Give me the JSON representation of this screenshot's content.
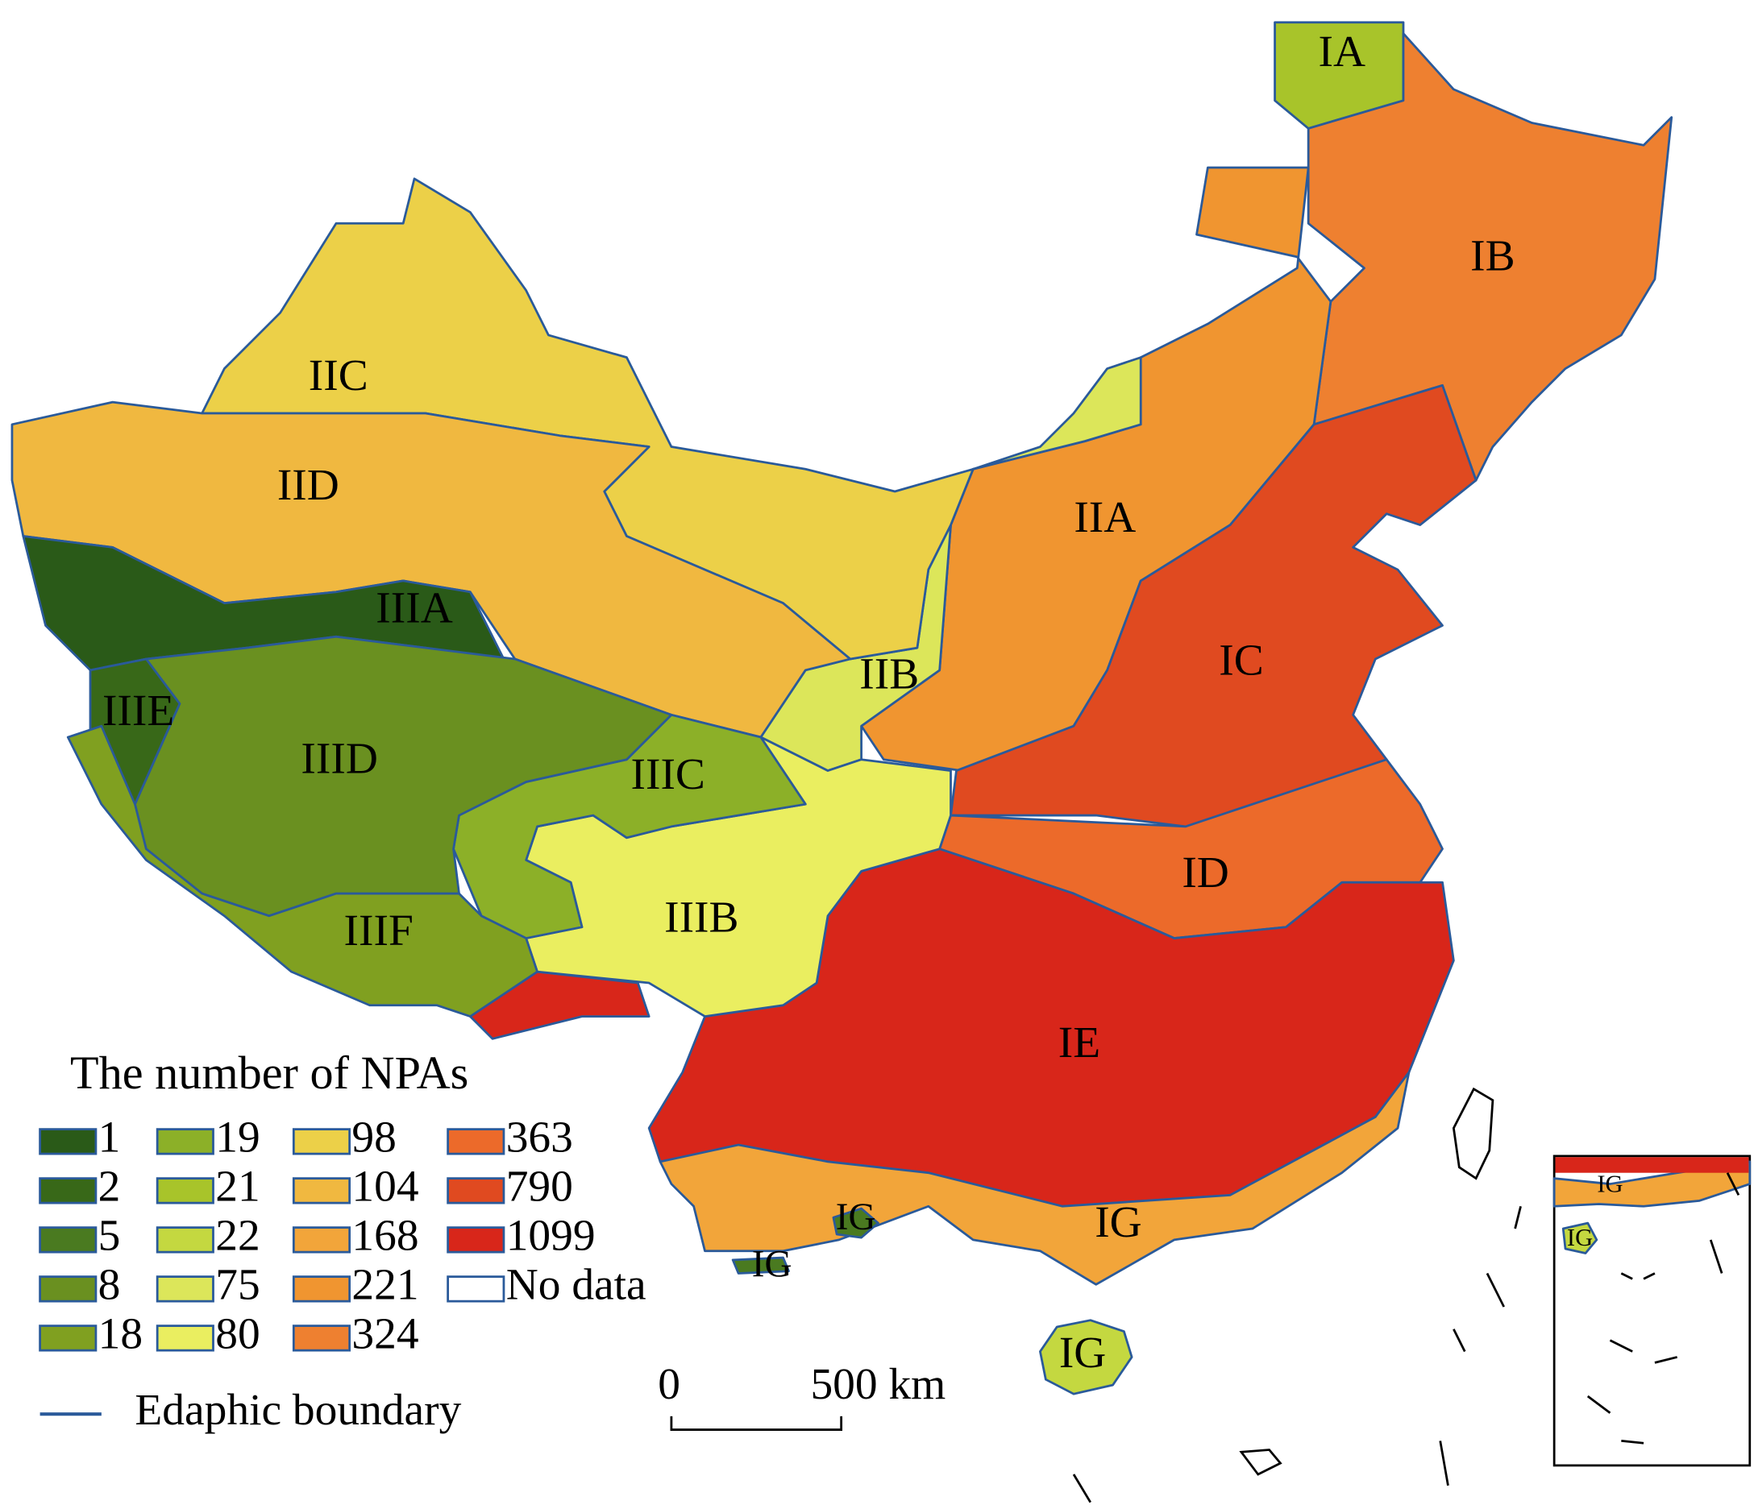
{
  "title": "The number of NPAs",
  "legend": [
    {
      "label": "1",
      "color": "#2a5a18"
    },
    {
      "label": "2",
      "color": "#386818"
    },
    {
      "label": "5",
      "color": "#4a7a20"
    },
    {
      "label": "8",
      "color": "#6a9020"
    },
    {
      "label": "18",
      "color": "#80a020"
    },
    {
      "label": "19",
      "color": "#8cb028"
    },
    {
      "label": "21",
      "color": "#a8c42a"
    },
    {
      "label": "22",
      "color": "#c4d840"
    },
    {
      "label": "75",
      "color": "#dce65a"
    },
    {
      "label": "80",
      "color": "#eaee60"
    },
    {
      "label": "98",
      "color": "#ecd048"
    },
    {
      "label": "104",
      "color": "#f0b840"
    },
    {
      "label": "168",
      "color": "#f2a53a"
    },
    {
      "label": "221",
      "color": "#f09530"
    },
    {
      "label": "324",
      "color": "#ee8030"
    },
    {
      "label": "363",
      "color": "#ec6a2a"
    },
    {
      "label": "790",
      "color": "#e04a20"
    },
    {
      "label": "1099",
      "color": "#d8261a"
    },
    {
      "label": "No data",
      "color": "#ffffff"
    }
  ],
  "boundary_label": "Edaphic boundary",
  "scale_bar": {
    "start": "0",
    "end": "500 km"
  },
  "regions": [
    {
      "label": "IA",
      "color": "#a8c42a"
    },
    {
      "label": "IB",
      "color": "#ee8030"
    },
    {
      "label": "IIA",
      "color": "#f09530"
    },
    {
      "label": "IC",
      "color": "#e04a20"
    },
    {
      "label": "ID",
      "color": "#ec6a2a"
    },
    {
      "label": "IE",
      "color": "#d8261a"
    },
    {
      "label": "IG",
      "color": "#f2a53a"
    },
    {
      "label": "IG",
      "color": "#c4d840"
    },
    {
      "label": "IG",
      "color": "#4a7a20"
    },
    {
      "label": "IG",
      "color": "#4a7a20"
    },
    {
      "label": "IIB",
      "color": "#dce65a"
    },
    {
      "label": "IIC",
      "color": "#ecd048"
    },
    {
      "label": "IID",
      "color": "#f0b840"
    },
    {
      "label": "IIIA",
      "color": "#2a5a18"
    },
    {
      "label": "IIIB",
      "color": "#eaee60"
    },
    {
      "label": "IIIC",
      "color": "#8cb028"
    },
    {
      "label": "IIID",
      "color": "#6a9020"
    },
    {
      "label": "IIIE",
      "color": "#386818"
    },
    {
      "label": "IIIF",
      "color": "#80a020"
    },
    {
      "label": "IG",
      "color": "#f2a53a"
    },
    {
      "label": "IG",
      "color": "#c4d840"
    }
  ]
}
